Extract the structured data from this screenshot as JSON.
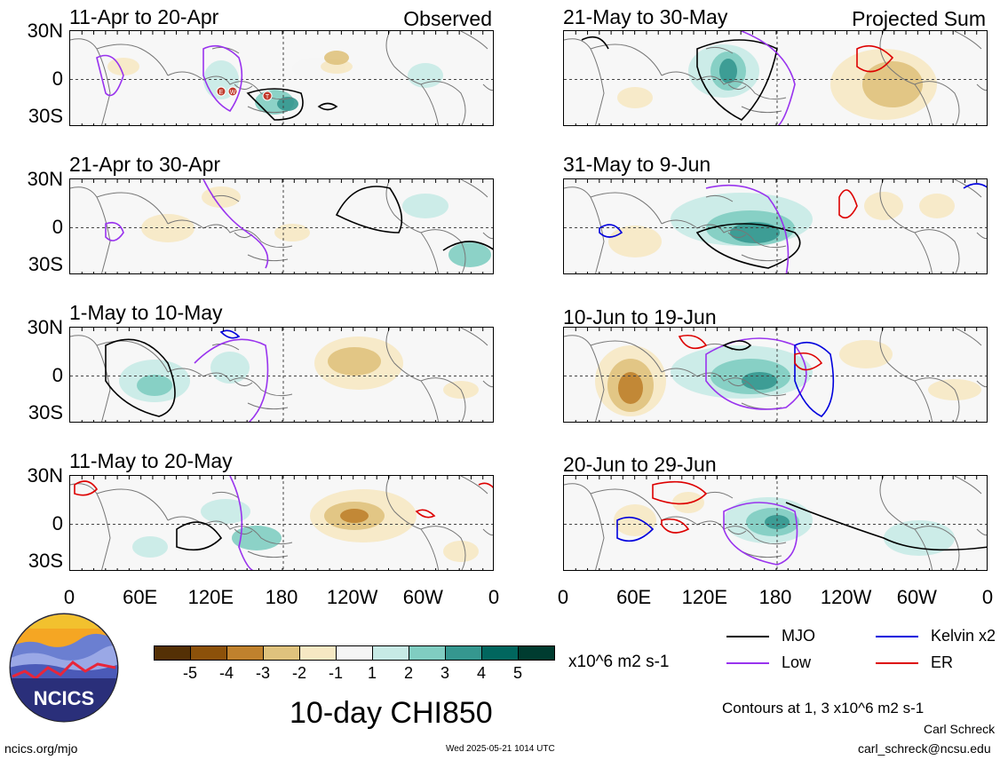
{
  "panels": [
    {
      "title": "11-Apr to 20-Apr",
      "corner": "Observed"
    },
    {
      "title": "21-Apr to 30-Apr",
      "corner": ""
    },
    {
      "title": "1-May to 10-May",
      "corner": ""
    },
    {
      "title": "11-May to 20-May",
      "corner": ""
    },
    {
      "title": "21-May to 30-May",
      "corner": "Projected Sum"
    },
    {
      "title": "31-May to 9-Jun",
      "corner": ""
    },
    {
      "title": "10-Jun to 19-Jun",
      "corner": ""
    },
    {
      "title": "20-Jun to 29-Jun",
      "corner": ""
    }
  ],
  "lat_labels": [
    "30N",
    "0",
    "30S"
  ],
  "lon_labels": [
    "0",
    "60E",
    "120E",
    "180",
    "120W",
    "60W",
    "0"
  ],
  "phase_markers": [
    "E",
    "W",
    "T"
  ],
  "colorbar": {
    "colors": [
      "#543005",
      "#8c510a",
      "#bf812d",
      "#dfc27d",
      "#f6e8c3",
      "#f5f5f5",
      "#c7eae5",
      "#80cdc1",
      "#35978f",
      "#01665e",
      "#003c30"
    ],
    "labels": [
      "-5",
      "-4",
      "-3",
      "-2",
      "-1",
      "1",
      "2",
      "3",
      "4",
      "5"
    ],
    "units": "x10^6 m2 s-1"
  },
  "legend": {
    "items": [
      {
        "label": "MJO",
        "color": "#000000"
      },
      {
        "label": "Kelvin x2",
        "color": "#0000dd"
      },
      {
        "label": "Low",
        "color": "#9933ee"
      },
      {
        "label": "ER",
        "color": "#dd0000"
      }
    ],
    "contours_note": "Contours at 1, 3 x10^6 m2 s-1"
  },
  "main_title": "10-day CHI850",
  "logo_text": "NCICS",
  "footer": {
    "url": "ncics.org/mjo",
    "timestamp": "Wed 2025-05-21 1014 UTC",
    "author": "Carl Schreck",
    "email": "carl_schreck@ncsu.edu"
  }
}
